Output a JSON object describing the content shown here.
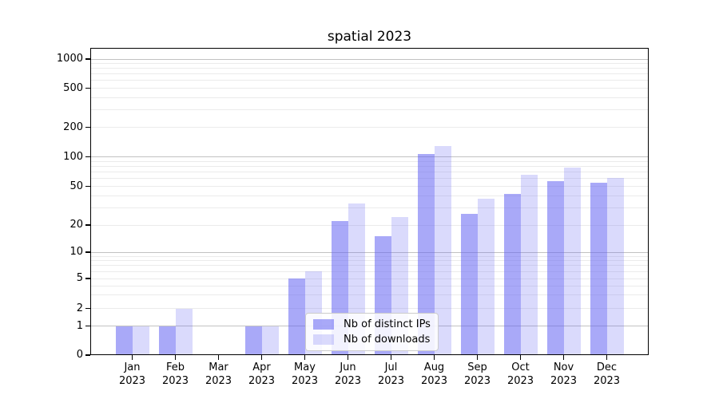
{
  "chart_data": {
    "type": "bar",
    "title": "spatial 2023",
    "categories": [
      "Jan",
      "Feb",
      "Mar",
      "Apr",
      "May",
      "Jun",
      "Jul",
      "Aug",
      "Sep",
      "Oct",
      "Nov",
      "Dec"
    ],
    "year_label": "2023",
    "series": [
      {
        "name": "Nb of distinct IPs",
        "color": "rgba(99,99,243,0.55)",
        "color_hex": "#a8a8f8",
        "values": [
          1,
          1,
          0,
          1,
          5,
          22,
          15,
          106,
          26,
          42,
          56,
          54
        ]
      },
      {
        "name": "Nb of downloads",
        "color": "rgba(99,99,243,0.24)",
        "color_hex": "#d9d9f9",
        "values": [
          1,
          2,
          0,
          1,
          6,
          33,
          24,
          128,
          37,
          66,
          77,
          61
        ]
      }
    ],
    "xlabel": "",
    "ylabel": "",
    "y_axis": {
      "scale": "symlog",
      "tick_labels": [
        0,
        1,
        2,
        5,
        10,
        20,
        50,
        100,
        200,
        500,
        1000
      ],
      "major_gridlines": [
        1,
        10,
        100,
        1000
      ],
      "minor_gridlines": [
        3,
        4,
        6,
        7,
        8,
        9,
        30,
        40,
        60,
        70,
        80,
        90,
        300,
        400,
        600,
        700,
        800,
        900
      ]
    },
    "legend": {
      "position": "lower center",
      "entries": [
        "Nb of distinct IPs",
        "Nb of downloads"
      ]
    },
    "grid": true
  },
  "colors": {
    "major_gridline": "#c2c2c2",
    "minor_gridline": "#ebebeb",
    "axis": "#000000",
    "text": "#000000",
    "legend_border": "#cccccc"
  }
}
